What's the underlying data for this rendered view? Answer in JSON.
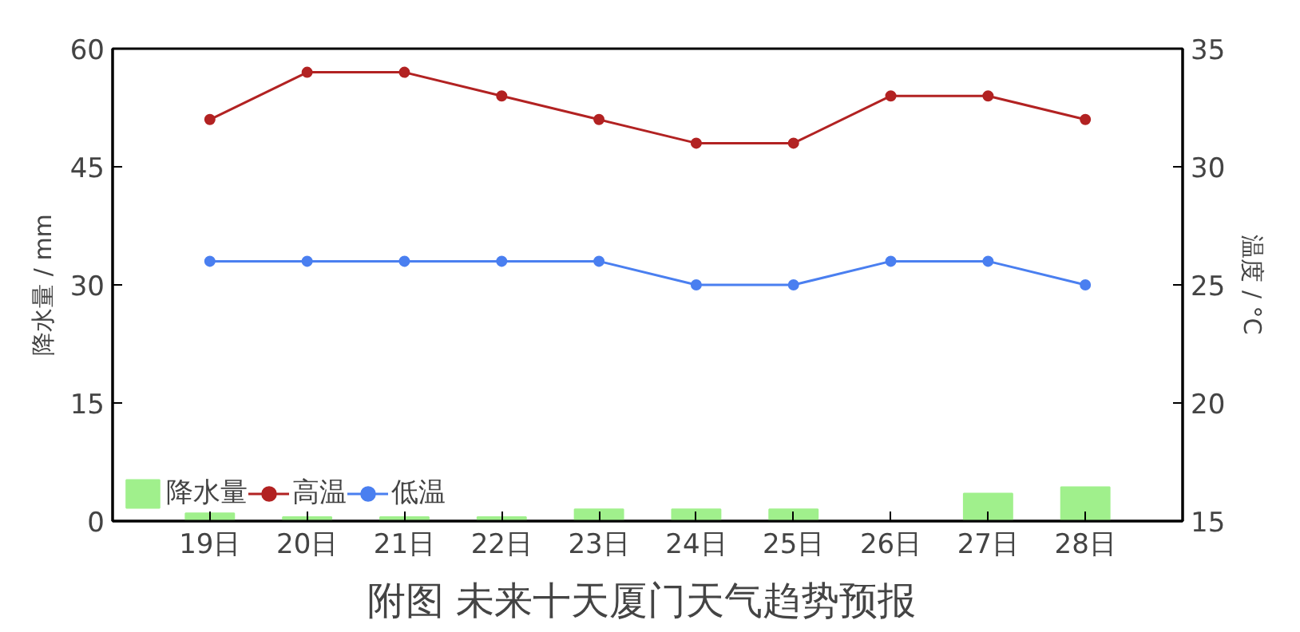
{
  "chart_data": {
    "type": "bar",
    "title": "附图  未来十天厦门天气趋势预报",
    "ylabel": "降水量 / mm",
    "y2label": "温度 / °C",
    "categories": [
      "19日",
      "20日",
      "21日",
      "22日",
      "23日",
      "24日",
      "25日",
      "26日",
      "27日",
      "28日"
    ],
    "series": [
      {
        "name": "降水量",
        "color": "#a0f08c",
        "values": [
          1,
          0.5,
          0.5,
          0.5,
          1.5,
          1.5,
          1.5,
          0,
          3.5,
          4.3
        ]
      },
      {
        "name": "高温",
        "type": "line",
        "axis": "y2",
        "color": "#b22222",
        "values": [
          32,
          34,
          34,
          33,
          32,
          31,
          31,
          33,
          33,
          32
        ]
      },
      {
        "name": "低温",
        "type": "line",
        "axis": "y2",
        "color": "#4a7ff0",
        "values": [
          26,
          26,
          26,
          26,
          26,
          25,
          25,
          26,
          26,
          25
        ]
      }
    ],
    "ylim": [
      0,
      60
    ],
    "yticks": [
      0,
      15,
      30,
      45,
      60
    ],
    "y2lim": [
      15,
      35
    ],
    "y2ticks": [
      15,
      20,
      25,
      30,
      35
    ],
    "marker": "circle",
    "line_style": "solid",
    "legend": "bottom left",
    "grid": false
  }
}
